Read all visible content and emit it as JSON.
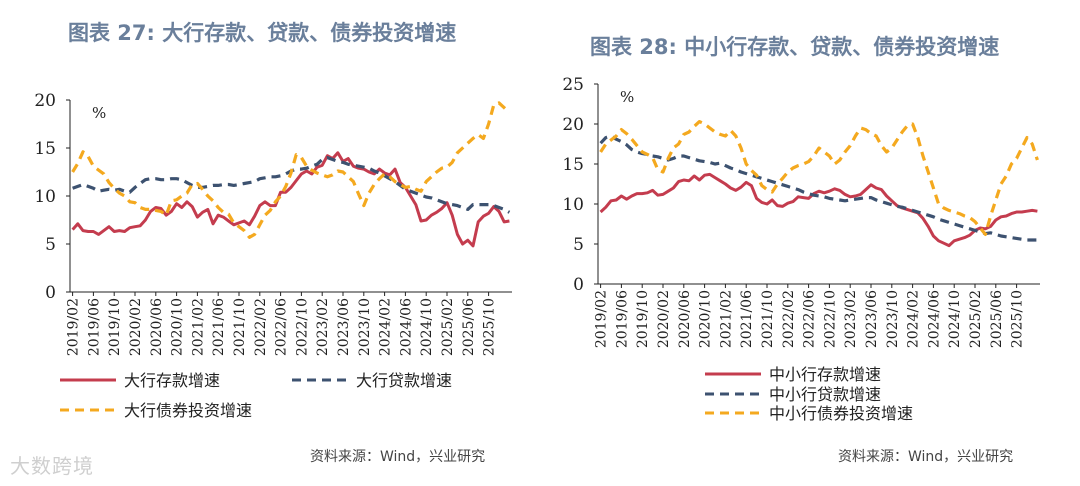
{
  "watermark": "大数跨境",
  "charts": [
    {
      "title": "图表 27: 大行存款、贷款、债券投资增速",
      "source": "资料来源：Wind，兴业研究"
    },
    {
      "title": "图表 28: 中小行存款、贷款、债券投资增速",
      "source": "资料来源：Wind，兴业研究"
    }
  ],
  "colors": {
    "red": "#c43c4e",
    "navy": "#3d5270",
    "orange": "#f4a91f",
    "axis": "#222222"
  },
  "chart_data": [
    {
      "type": "line",
      "title": "图表 27: 大行存款、贷款、债券投资增速",
      "ylabel": "%",
      "ylim": [
        0,
        20
      ],
      "yticks": [
        0,
        5,
        10,
        15,
        20
      ],
      "x_start": "2019/02",
      "x_tick_labels": [
        "2019/02",
        "2019/06",
        "2019/10",
        "2020/02",
        "2020/06",
        "2020/10",
        "2021/02",
        "2021/06",
        "2021/10",
        "2022/02",
        "2022/06",
        "2022/10",
        "2023/02",
        "2023/06",
        "2023/10",
        "2024/02",
        "2024/06",
        "2024/10",
        "2025/02",
        "2025/06",
        "2025/10"
      ],
      "series": [
        {
          "name": "大行存款增速",
          "style": "solid",
          "color": "#c43c4e",
          "values": [
            6.5,
            7.1,
            6.4,
            6.3,
            6.3,
            6.0,
            6.4,
            6.8,
            6.3,
            6.4,
            6.3,
            6.7,
            6.8,
            6.9,
            7.5,
            8.4,
            8.8,
            8.7,
            8.0,
            8.4,
            9.2,
            8.8,
            9.4,
            8.9,
            7.8,
            8.3,
            8.6,
            7.1,
            8.0,
            7.8,
            7.4,
            7.0,
            7.2,
            7.4,
            7.0,
            7.9,
            9.0,
            9.4,
            9.0,
            9.0,
            10.4,
            10.4,
            10.9,
            11.6,
            12.3,
            12.6,
            12.3,
            13.0,
            13.2,
            14.2,
            13.9,
            14.5,
            13.6,
            13.9,
            13.1,
            12.9,
            12.8,
            12.5,
            12.3,
            12.8,
            12.4,
            12.2,
            12.8,
            11.4,
            10.9,
            10.0,
            9.1,
            7.4,
            7.5,
            8.0,
            8.3,
            8.7,
            9.3,
            8.0,
            6.0,
            5.0,
            5.4,
            4.8,
            7.3,
            7.9,
            8.2,
            8.9,
            8.4,
            7.3,
            7.4
          ]
        },
        {
          "name": "大行贷款增速",
          "style": "dashed",
          "color": "#3d5270",
          "values": [
            10.8,
            11.0,
            11.2,
            11.0,
            10.8,
            10.5,
            10.6,
            10.7,
            10.6,
            10.7,
            10.5,
            10.4,
            10.9,
            11.3,
            11.7,
            11.8,
            11.8,
            11.7,
            11.7,
            11.8,
            11.8,
            11.7,
            11.4,
            11.1,
            10.9,
            10.9,
            11.0,
            11.1,
            11.1,
            11.2,
            11.2,
            11.1,
            11.2,
            11.3,
            11.4,
            11.5,
            11.8,
            11.9,
            12.0,
            12.0,
            12.1,
            12.3,
            12.6,
            12.8,
            12.8,
            12.9,
            13.1,
            13.3,
            13.8,
            14.0,
            13.8,
            13.6,
            13.5,
            13.3,
            13.2,
            13.1,
            13.0,
            12.9,
            12.6,
            12.4,
            12.1,
            11.8,
            11.5,
            11.1,
            10.7,
            10.5,
            10.3,
            10.1,
            9.9,
            9.8,
            9.6,
            9.4,
            9.2,
            9.1,
            9.0,
            8.8,
            8.6,
            9.1,
            9.1,
            9.1,
            9.1,
            9.0,
            8.8,
            8.6,
            8.3
          ]
        },
        {
          "name": "大行债券投资增速",
          "style": "dashed",
          "color": "#f4a91f",
          "values": [
            12.5,
            13.4,
            14.6,
            14.1,
            13.1,
            12.7,
            12.3,
            11.4,
            10.8,
            10.3,
            10.0,
            9.4,
            9.3,
            8.8,
            8.6,
            8.6,
            8.5,
            8.4,
            8.0,
            9.5,
            9.6,
            10.0,
            10.3,
            11.2,
            11.3,
            10.7,
            10.0,
            9.5,
            8.8,
            8.3,
            8.1,
            7.2,
            6.8,
            6.4,
            5.7,
            6.0,
            7.0,
            8.0,
            8.5,
            9.4,
            10.0,
            11.0,
            12.4,
            14.3,
            14.0,
            13.1,
            12.7,
            12.4,
            12.2,
            12.0,
            12.2,
            12.6,
            12.5,
            12.0,
            11.5,
            10.2,
            9.0,
            10.3,
            11.2,
            11.8,
            12.3,
            12.0,
            11.5,
            11.2,
            10.9,
            11.0,
            10.7,
            10.5,
            11.5,
            12.0,
            12.5,
            12.9,
            13.0,
            13.5,
            14.5,
            15.0,
            15.5,
            16.0,
            16.4,
            16.0,
            17.5,
            19.5,
            19.7,
            19.2,
            18.7
          ]
        }
      ]
    },
    {
      "type": "line",
      "title": "图表 28: 中小行存款、贷款、债券投资增速",
      "ylabel": "%",
      "ylim": [
        0,
        25
      ],
      "yticks": [
        0,
        5,
        10,
        15,
        20,
        25
      ],
      "x_start": "2019/02",
      "x_tick_labels": [
        "2019/02",
        "2019/06",
        "2019/10",
        "2020/02",
        "2020/06",
        "2020/10",
        "2021/02",
        "2021/06",
        "2021/10",
        "2022/02",
        "2022/06",
        "2022/10",
        "2023/02",
        "2023/06",
        "2023/10",
        "2024/02",
        "2024/06",
        "2024/10",
        "2025/02",
        "2025/06",
        "2025/10"
      ],
      "series": [
        {
          "name": "中小行存款增速",
          "style": "solid",
          "color": "#c43c4e",
          "values": [
            9.0,
            9.6,
            10.4,
            10.5,
            11.0,
            10.6,
            11.0,
            11.3,
            11.3,
            11.4,
            11.7,
            11.1,
            11.2,
            11.6,
            12.0,
            12.8,
            13.0,
            12.9,
            13.5,
            13.0,
            13.6,
            13.7,
            13.3,
            12.9,
            12.5,
            12.0,
            11.7,
            12.1,
            12.7,
            12.3,
            10.7,
            10.2,
            10.0,
            10.5,
            9.8,
            9.7,
            10.1,
            10.3,
            10.9,
            10.8,
            10.7,
            11.3,
            11.6,
            11.4,
            11.6,
            11.9,
            11.7,
            11.2,
            10.9,
            11.0,
            11.2,
            11.8,
            12.4,
            12.0,
            11.8,
            11.0,
            10.4,
            9.8,
            9.5,
            9.3,
            9.1,
            8.9,
            8.2,
            7.2,
            6.0,
            5.4,
            5.1,
            4.8,
            5.4,
            5.6,
            5.8,
            6.1,
            6.7,
            7.0,
            6.9,
            7.2,
            8.0,
            8.4,
            8.5,
            8.8,
            9.0,
            9.0,
            9.1,
            9.2,
            9.1
          ]
        },
        {
          "name": "中小行贷款增速",
          "style": "dashed",
          "color": "#3d5270",
          "values": [
            17.6,
            18.3,
            18.5,
            18.1,
            17.8,
            17.4,
            16.8,
            16.5,
            16.3,
            16.2,
            16.0,
            15.9,
            15.7,
            15.5,
            15.7,
            16.0,
            16.0,
            15.8,
            15.6,
            15.4,
            15.3,
            15.2,
            15.0,
            15.1,
            14.8,
            14.5,
            14.3,
            14.0,
            13.8,
            13.6,
            13.4,
            13.2,
            13.0,
            12.8,
            12.6,
            12.4,
            12.2,
            12.0,
            11.8,
            11.5,
            11.3,
            11.1,
            11.0,
            10.9,
            10.7,
            10.6,
            10.5,
            10.4,
            10.5,
            10.6,
            10.7,
            10.8,
            10.8,
            10.5,
            10.3,
            10.1,
            9.9,
            9.7,
            9.6,
            9.4,
            9.2,
            9.0,
            8.8,
            8.6,
            8.4,
            8.1,
            7.9,
            7.7,
            7.5,
            7.3,
            7.1,
            6.9,
            6.7,
            6.5,
            6.3,
            6.4,
            6.2,
            6.0,
            5.9,
            5.8,
            5.7,
            5.6,
            5.5,
            5.5,
            5.5
          ]
        },
        {
          "name": "中小行债券投资增速",
          "style": "dashed",
          "color": "#f4a91f",
          "values": [
            16.5,
            17.5,
            18.0,
            18.5,
            19.3,
            18.8,
            18.1,
            17.3,
            16.5,
            16.2,
            15.8,
            14.3,
            14.0,
            15.7,
            17.0,
            17.5,
            18.7,
            19.0,
            19.7,
            20.3,
            20.0,
            19.5,
            19.0,
            18.7,
            18.5,
            19.2,
            18.5,
            17.0,
            15.0,
            14.2,
            13.6,
            12.3,
            11.8,
            11.5,
            12.5,
            13.2,
            14.0,
            14.5,
            14.8,
            15.0,
            15.3,
            16.0,
            17.0,
            16.5,
            16.0,
            15.0,
            15.5,
            16.5,
            17.3,
            18.5,
            19.5,
            19.3,
            18.8,
            18.5,
            17.3,
            16.5,
            17.0,
            18.0,
            19.0,
            19.8,
            20.0,
            18.3,
            16.0,
            14.0,
            12.0,
            10.0,
            9.5,
            9.2,
            9.0,
            8.8,
            8.5,
            8.3,
            7.8,
            7.0,
            6.2,
            8.5,
            10.5,
            12.5,
            13.5,
            15.0,
            15.7,
            17.0,
            18.3,
            17.5,
            15.5
          ]
        }
      ]
    }
  ]
}
